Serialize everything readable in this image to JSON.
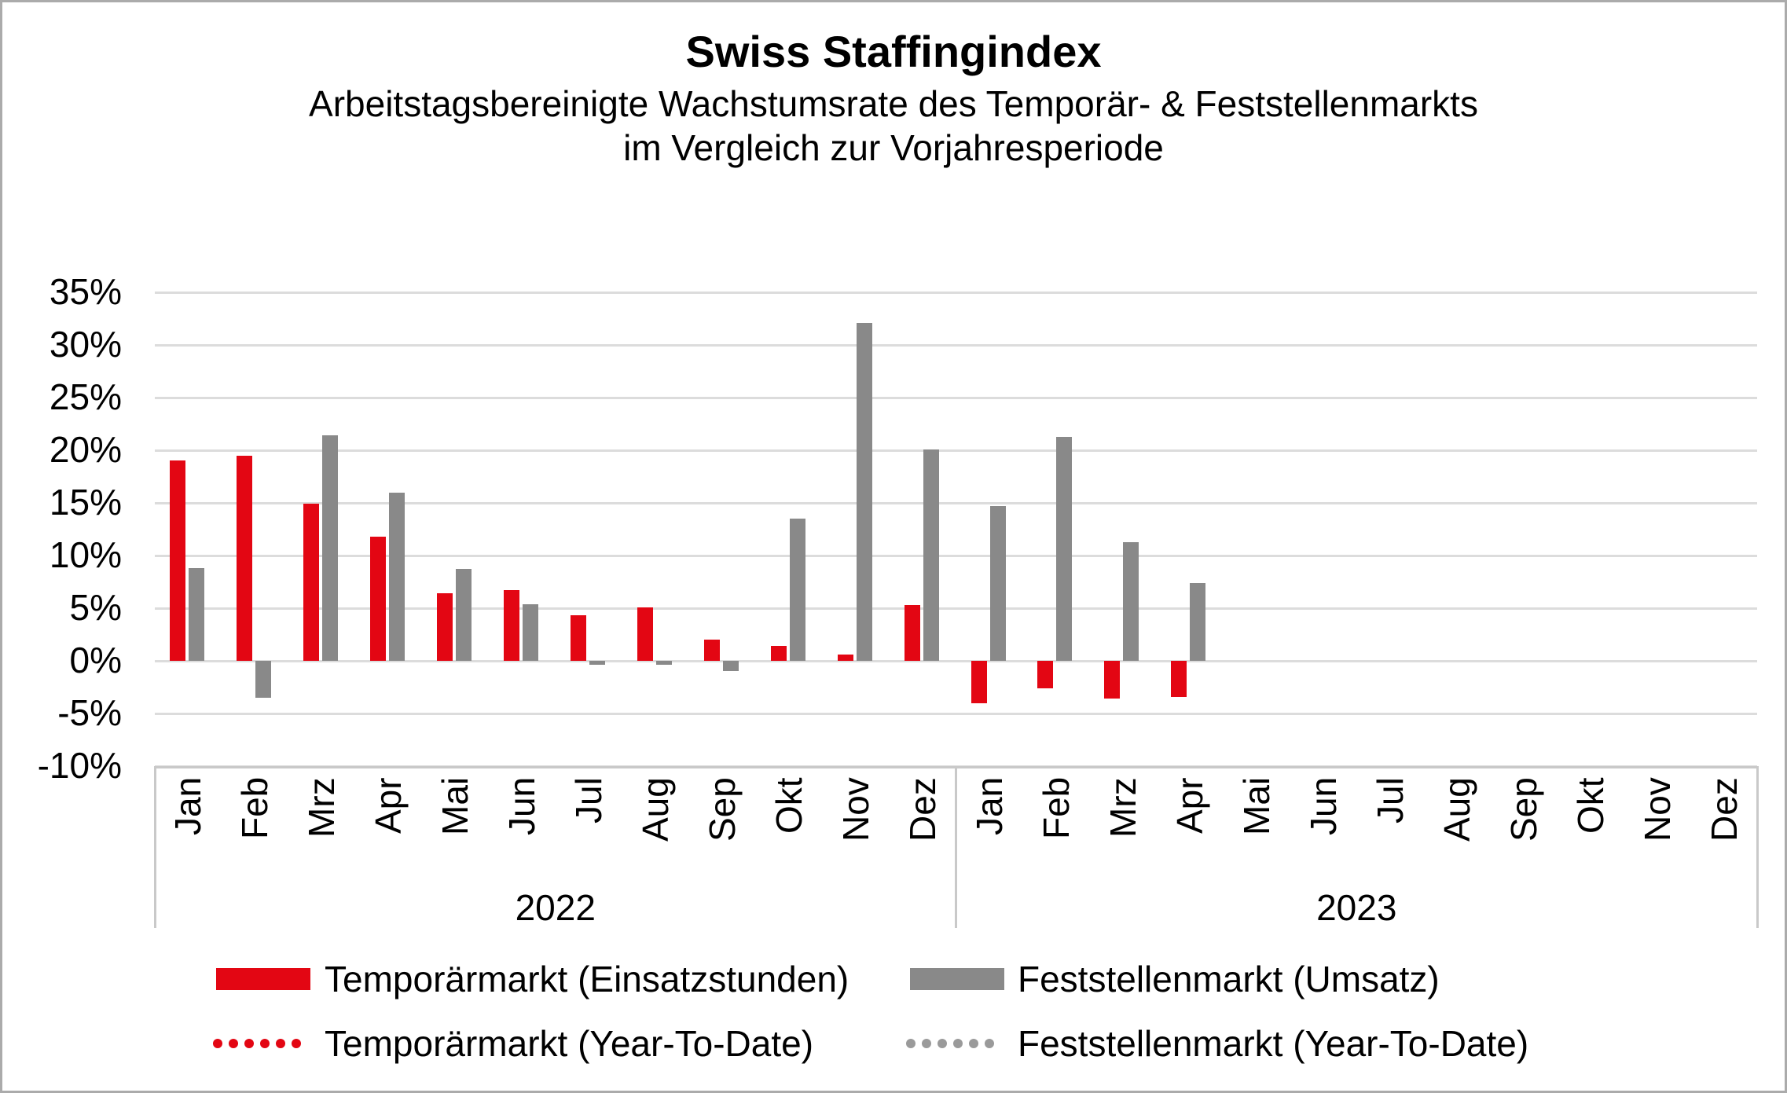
{
  "title": "Swiss Staffingindex",
  "subtitle_line1": "Arbeitstagsbereinigte Wachstumsrate des Temporär- & Feststellenmarkts",
  "subtitle_line2": "im Vergleich zur Vorjahresperiode",
  "colors": {
    "temporaer_red": "#e30613",
    "feststellen_gray": "#898989",
    "gridline_gray": "#dcdcdc",
    "axis_gray": "#c9c9c9"
  },
  "chart_data": {
    "type": "bar",
    "unit": "%",
    "grid": true,
    "y_axis": {
      "min": -10,
      "max": 35,
      "step": 5,
      "tick_labels": [
        "35%",
        "30%",
        "25%",
        "20%",
        "15%",
        "10%",
        "5%",
        "0%",
        "-5%",
        "-10%"
      ],
      "tick_values": [
        35,
        30,
        25,
        20,
        15,
        10,
        5,
        0,
        -5,
        -10
      ]
    },
    "categories": [
      "Jan",
      "Feb",
      "Mrz",
      "Apr",
      "Mai",
      "Jun",
      "Jul",
      "Aug",
      "Sep",
      "Okt",
      "Nov",
      "Dez",
      "Jan",
      "Feb",
      "Mrz",
      "Apr",
      "Mai",
      "Jun",
      "Jul",
      "Aug",
      "Sep",
      "Okt",
      "Nov",
      "Dez"
    ],
    "year_groups": [
      {
        "label": "2022",
        "start_index": 0,
        "end_index": 11
      },
      {
        "label": "2023",
        "start_index": 12,
        "end_index": 23
      }
    ],
    "series": [
      {
        "name": "Temporärmarkt (Einsatzstunden)",
        "color": "#e30613",
        "values": [
          19.0,
          19.5,
          14.9,
          11.8,
          6.4,
          6.7,
          4.3,
          5.1,
          2.0,
          1.4,
          0.6,
          5.3,
          -4.0,
          -2.6,
          -3.6,
          -3.4,
          null,
          null,
          null,
          null,
          null,
          null,
          null,
          null
        ]
      },
      {
        "name": "Feststellenmarkt (Umsatz)",
        "color": "#898989",
        "values": [
          8.8,
          -3.5,
          21.4,
          16.0,
          8.7,
          5.4,
          -0.4,
          -0.4,
          -1.0,
          13.5,
          32.1,
          20.1,
          14.7,
          21.3,
          11.3,
          7.4,
          null,
          null,
          null,
          null,
          null,
          null,
          null,
          null
        ]
      }
    ],
    "legend": {
      "position": "bottom",
      "items": [
        {
          "label": "Temporärmarkt (Einsatzstunden)",
          "style": "solid",
          "color": "#e30613"
        },
        {
          "label": "Feststellenmarkt (Umsatz)",
          "style": "solid",
          "color": "#898989"
        },
        {
          "label": "Temporärmarkt (Year-To-Date)",
          "style": "dotted",
          "color": "#e30613"
        },
        {
          "label": "Feststellenmarkt (Year-To-Date)",
          "style": "dotted",
          "color": "#9a9a9a"
        }
      ]
    }
  }
}
